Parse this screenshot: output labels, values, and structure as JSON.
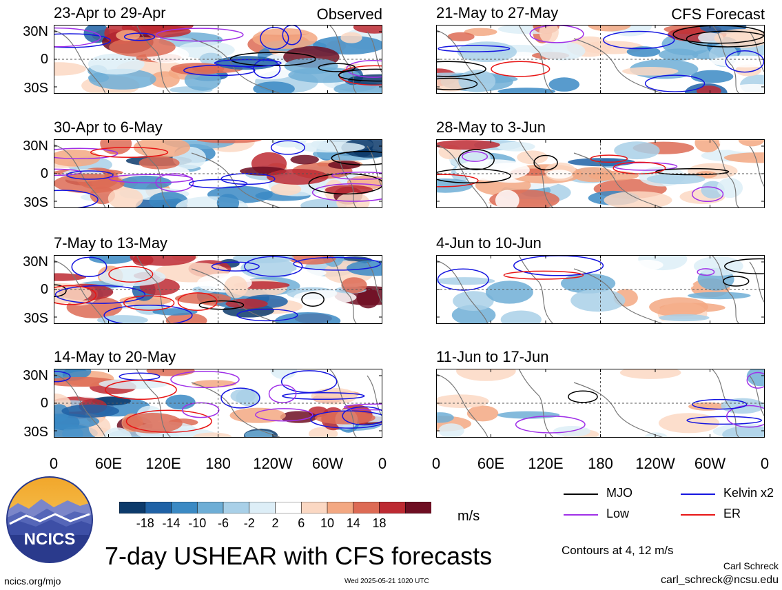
{
  "chart_data": {
    "type": "heatmap",
    "variable": "7-day USHEAR with CFS forecasts",
    "unit": "m/s",
    "column_labels": [
      "Observed",
      "CFS Forecast"
    ],
    "panels": [
      {
        "title": "23-Apr to 29-Apr",
        "column": "Observed"
      },
      {
        "title": "30-Apr to 6-May",
        "column": "Observed"
      },
      {
        "title": "7-May to 13-May",
        "column": "Observed"
      },
      {
        "title": "14-May to 20-May",
        "column": "Observed"
      },
      {
        "title": "21-May to 27-May",
        "column": "CFS Forecast"
      },
      {
        "title": "28-May to 3-Jun",
        "column": "CFS Forecast"
      },
      {
        "title": "4-Jun to 10-Jun",
        "column": "CFS Forecast"
      },
      {
        "title": "11-Jun to 17-Jun",
        "column": "CFS Forecast"
      }
    ],
    "y_ticks": [
      "30N",
      "0",
      "30S"
    ],
    "x_ticks": [
      "0",
      "60E",
      "120E",
      "180",
      "120W",
      "60W",
      "0"
    ],
    "colorbar": {
      "ticks": [
        "-18",
        "-14",
        "-10",
        "-6",
        "-2",
        "2",
        "6",
        "10",
        "14",
        "18"
      ],
      "colors": [
        "#0c3a6b",
        "#1f62a6",
        "#3b8ac4",
        "#6eaed6",
        "#a9d0e8",
        "#ddeef7",
        "#ffffff",
        "#fbd8c3",
        "#f3a882",
        "#dd6b55",
        "#bd2a32",
        "#6e0e22"
      ]
    },
    "legend": [
      {
        "label": "MJO",
        "color": "#000000"
      },
      {
        "label": "Kelvin x2",
        "color": "#1515e0"
      },
      {
        "label": "Low",
        "color": "#a030e8"
      },
      {
        "label": "ER",
        "color": "#e81515"
      }
    ]
  },
  "footer": {
    "contours": "Contours at 4, 12 m/s",
    "author": "Carl Schreck",
    "email": "carl_schreck@ncsu.edu",
    "url": "ncics.org/mjo",
    "timestamp": "Wed 2025-05-21 1020 UTC",
    "big_title": "7-day USHEAR with CFS forecasts",
    "units_label": "m/s"
  },
  "logo": {
    "text": "NCICS"
  }
}
